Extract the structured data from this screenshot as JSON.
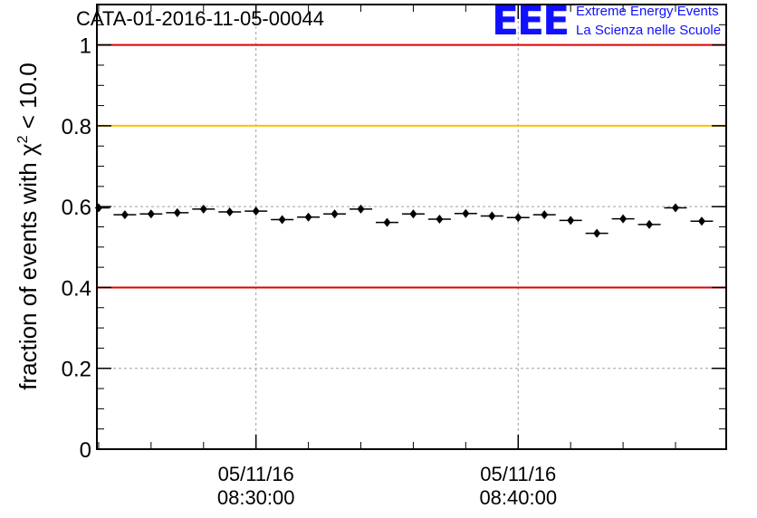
{
  "header": {
    "run_title": "CATA-01-2016-11-05-00044",
    "logo_mark": "EEE",
    "logo_line1": "Extreme Energy Events",
    "logo_line2": "La Scienza nelle Scuole"
  },
  "colors": {
    "limit_red": "#e00000",
    "limit_yellow": "#ffc000",
    "marker": "#000000",
    "grid": "#a0a0a0",
    "logo_blue": "#1010ff"
  },
  "chart_data": {
    "type": "scatter",
    "title": "CATA-01-2016-11-05-00044",
    "ylabel": "fraction of events with χ² < 10.0",
    "ylabel_main": "fraction of events with χ",
    "ylabel_sup": "2",
    "ylabel_tail": " < 10.0",
    "xlabel": "",
    "x_unit": "time",
    "xlim": [
      "2016-11-05 08:23:56",
      "2016-11-05 08:47:56"
    ],
    "ylim": [
      0,
      1.1
    ],
    "yticks": [
      0,
      0.2,
      0.4,
      0.6,
      0.8,
      1
    ],
    "ytick_labels": [
      "0",
      "0.2",
      "0.4",
      "0.6",
      "0.8",
      "1"
    ],
    "xticks": [
      "2016-11-05 08:30:00",
      "2016-11-05 08:40:00"
    ],
    "xtick_labels": [
      [
        "05/11/16",
        "08:30:00"
      ],
      [
        "05/11/16",
        "08:40:00"
      ]
    ],
    "grid": true,
    "reference_lines": [
      {
        "y": 1.0,
        "color": "red"
      },
      {
        "y": 0.8,
        "color": "yellow"
      },
      {
        "y": 0.4,
        "color": "red"
      }
    ],
    "bin_width_minutes": 1,
    "series": [
      {
        "x": [
          "08:24:00",
          "08:25:00",
          "08:26:00",
          "08:27:00",
          "08:28:00",
          "08:29:00",
          "08:30:00",
          "08:31:00",
          "08:32:00",
          "08:33:00",
          "08:34:00",
          "08:35:00",
          "08:36:00",
          "08:37:00",
          "08:38:00",
          "08:39:00",
          "08:40:00",
          "08:41:00",
          "08:42:00",
          "08:43:00",
          "08:44:00",
          "08:45:00",
          "08:46:00",
          "08:47:00"
        ],
        "y": [
          0.597,
          0.58,
          0.582,
          0.585,
          0.594,
          0.587,
          0.589,
          0.568,
          0.574,
          0.582,
          0.594,
          0.561,
          0.582,
          0.569,
          0.583,
          0.577,
          0.573,
          0.58,
          0.566,
          0.534,
          0.57,
          0.556,
          0.597,
          0.564
        ]
      }
    ]
  }
}
